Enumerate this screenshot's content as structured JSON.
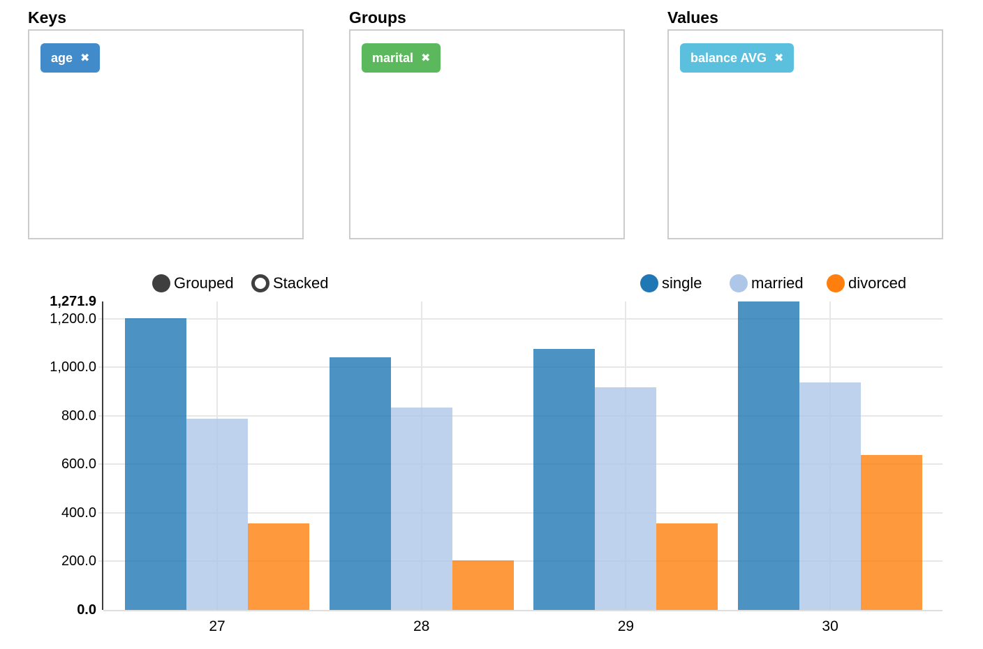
{
  "panels": [
    {
      "title": "Keys",
      "tags": [
        {
          "label": "age",
          "color": "#428bca"
        }
      ]
    },
    {
      "title": "Groups",
      "tags": [
        {
          "label": "marital",
          "color": "#5cb85c"
        }
      ]
    },
    {
      "title": "Values",
      "tags": [
        {
          "label": "balance AVG",
          "color": "#5bc0de"
        }
      ]
    }
  ],
  "icons": {
    "close": "✖"
  },
  "chart_controls": {
    "grouped_label": "Grouped",
    "stacked_label": "Stacked",
    "selected": "Grouped"
  },
  "chart_data": {
    "type": "bar",
    "mode": "grouped",
    "title": "",
    "xlabel": "",
    "ylabel": "",
    "grid": true,
    "legend_position": "top-right",
    "categories": [
      "27",
      "28",
      "29",
      "30"
    ],
    "series": [
      {
        "name": "single",
        "color": "#1f77b4",
        "values": [
          1203,
          1042,
          1076,
          1271.9
        ]
      },
      {
        "name": "married",
        "color": "#aec7e8",
        "values": [
          789,
          835,
          918,
          938
        ]
      },
      {
        "name": "divorced",
        "color": "#ff7f0e",
        "values": [
          357,
          204,
          357,
          639
        ]
      }
    ],
    "ylim": [
      0,
      1271.9
    ],
    "yticks": [
      {
        "value": 0,
        "label": "0.0",
        "bold": true
      },
      {
        "value": 200,
        "label": "200.0",
        "bold": false
      },
      {
        "value": 400,
        "label": "400.0",
        "bold": false
      },
      {
        "value": 600,
        "label": "600.0",
        "bold": false
      },
      {
        "value": 800,
        "label": "800.0",
        "bold": false
      },
      {
        "value": 1000,
        "label": "1,000.0",
        "bold": false
      },
      {
        "value": 1200,
        "label": "1,200.0",
        "bold": false
      },
      {
        "value": 1271.9,
        "label": "1,271.9",
        "bold": true
      }
    ]
  }
}
